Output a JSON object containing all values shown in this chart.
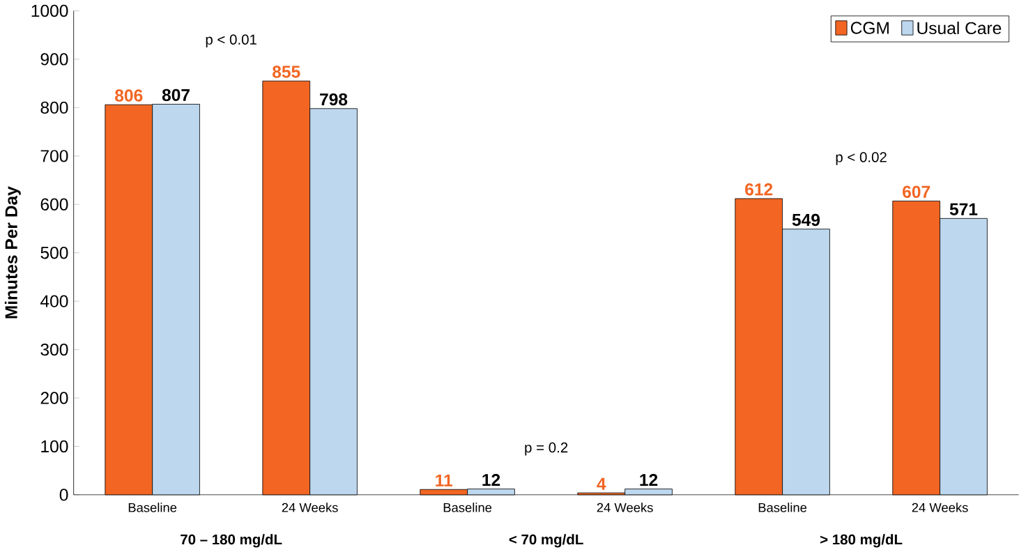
{
  "chart_data": {
    "type": "bar",
    "ylabel": "Minutes Per Day",
    "categories": [
      "Baseline",
      "24 Weeks",
      "Baseline",
      "24 Weeks",
      "Baseline",
      "24 Weeks"
    ],
    "series": [
      {
        "name": "CGM",
        "color": "#f26522",
        "values": [
          806,
          855,
          11,
          4,
          612,
          607
        ]
      },
      {
        "name": "Usual Care",
        "color": "#bdd7ee",
        "values": [
          807,
          798,
          12,
          12,
          549,
          571
        ]
      }
    ],
    "ylim": [
      0,
      1000
    ],
    "yticks": [
      0,
      100,
      200,
      300,
      400,
      500,
      600,
      700,
      800,
      900,
      1000
    ],
    "data_labels": true,
    "legend": "top right",
    "grid": false,
    "annotations": [
      "70 – 180 mg/dL",
      "< 70 mg/dL",
      "> 180 mg/dL",
      "p < 0.01",
      "p = 0.2",
      "p < 0.02"
    ]
  }
}
